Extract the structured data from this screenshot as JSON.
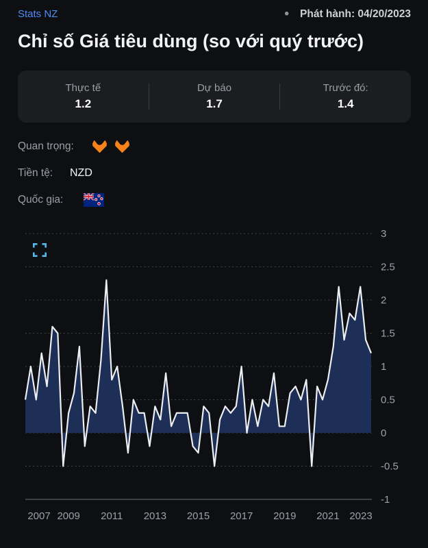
{
  "header": {
    "source": "Stats NZ",
    "bullet": "•",
    "release_label": "Phát hành: 04/20/2023",
    "title": "Chỉ số Giá tiêu dùng (so với quý trước)"
  },
  "stats": [
    {
      "label": "Thực tế",
      "value": "1.2"
    },
    {
      "label": "Dự báo",
      "value": "1.7"
    },
    {
      "label": "Trước đó:",
      "value": "1.4"
    }
  ],
  "info": {
    "importance_label": "Quan trọng:",
    "importance_level": 2,
    "importance_icon": "flame-icon",
    "currency_label": "Tiền tệ:",
    "currency_value": "NZD",
    "country_label": "Quốc gia:",
    "country_flag": "new-zealand-flag"
  },
  "colors": {
    "page_bg": "#0e0f12",
    "card_bg": "#1c1d20",
    "accent_link": "#4e8cf5",
    "flame_orange": "#f8821a",
    "chart_fill": "#1d2f56",
    "chart_line": "#eceef1",
    "grid": "#45484d",
    "axis_text": "#9ba1a8",
    "axis_line": "#6e7378",
    "expand_icon": "#57b7ea"
  },
  "chart_data": {
    "type": "area",
    "title": "",
    "frequency": "quarterly",
    "start_period": "2007Q1",
    "end_period": "2023Q1",
    "values": [
      0.5,
      1.0,
      0.5,
      1.2,
      0.7,
      1.6,
      1.5,
      -0.5,
      0.3,
      0.6,
      1.3,
      -0.2,
      0.4,
      0.3,
      1.1,
      2.3,
      0.8,
      1.0,
      0.4,
      -0.3,
      0.5,
      0.3,
      0.3,
      -0.2,
      0.4,
      0.2,
      0.9,
      0.1,
      0.3,
      0.3,
      0.3,
      -0.2,
      -0.3,
      0.4,
      0.3,
      -0.5,
      0.2,
      0.4,
      0.3,
      0.4,
      1.0,
      0.0,
      0.5,
      0.1,
      0.5,
      0.4,
      0.9,
      0.1,
      0.1,
      0.6,
      0.7,
      0.5,
      0.8,
      -0.5,
      0.7,
      0.5,
      0.8,
      1.3,
      2.2,
      1.4,
      1.8,
      1.7,
      2.2,
      1.4,
      1.2
    ],
    "x_tick_labels": [
      "2007",
      "2009",
      "2011",
      "2013",
      "2015",
      "2017",
      "2019",
      "2021",
      "2023"
    ],
    "y_ticks": [
      3,
      2.5,
      2,
      1.5,
      1,
      0.5,
      0,
      -0.5,
      -1
    ],
    "ylim": [
      -1,
      3
    ],
    "baseline": 0,
    "grid_style": "dashed-horizontal",
    "legend": "none"
  }
}
